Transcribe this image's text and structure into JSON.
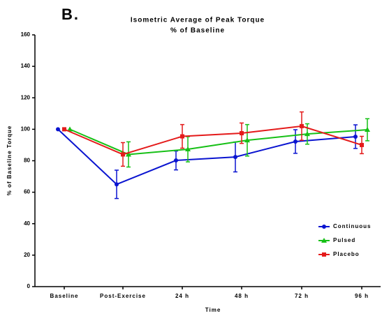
{
  "chart_data": {
    "type": "line",
    "panel_label": "B.",
    "title": "Isometric Average of Peak Torque",
    "subtitle": "% of Baseline",
    "x_label": "Time",
    "y_label": "% of Baseline Torque",
    "categories": [
      "Baseline",
      "Post-Exercise",
      "24 h",
      "48 h",
      "72 h",
      "96 h"
    ],
    "ylim": [
      0,
      160
    ],
    "yticks": [
      0,
      20,
      40,
      60,
      80,
      100,
      120,
      140,
      160
    ],
    "legend": "lower right",
    "series": [
      {
        "name": "Continuous",
        "color": "#0a14d0",
        "marker": "circle",
        "values": [
          100,
          65,
          80.2,
          82.4,
          92.2,
          95.3
        ],
        "errors": [
          0,
          9,
          6,
          9.5,
          7.5,
          7.5
        ]
      },
      {
        "name": "Pulsed",
        "color": "#16c016",
        "marker": "triangle",
        "values": [
          100,
          84,
          87.3,
          93,
          97,
          99.7
        ],
        "errors": [
          0,
          8,
          8,
          10,
          6.5,
          7
        ]
      },
      {
        "name": "Placebo",
        "color": "#e41a1a",
        "marker": "square",
        "values": [
          100,
          84,
          95.5,
          97.5,
          102,
          90
        ],
        "errors": [
          0,
          7.5,
          7.5,
          6.5,
          9,
          5.5
        ]
      }
    ]
  }
}
